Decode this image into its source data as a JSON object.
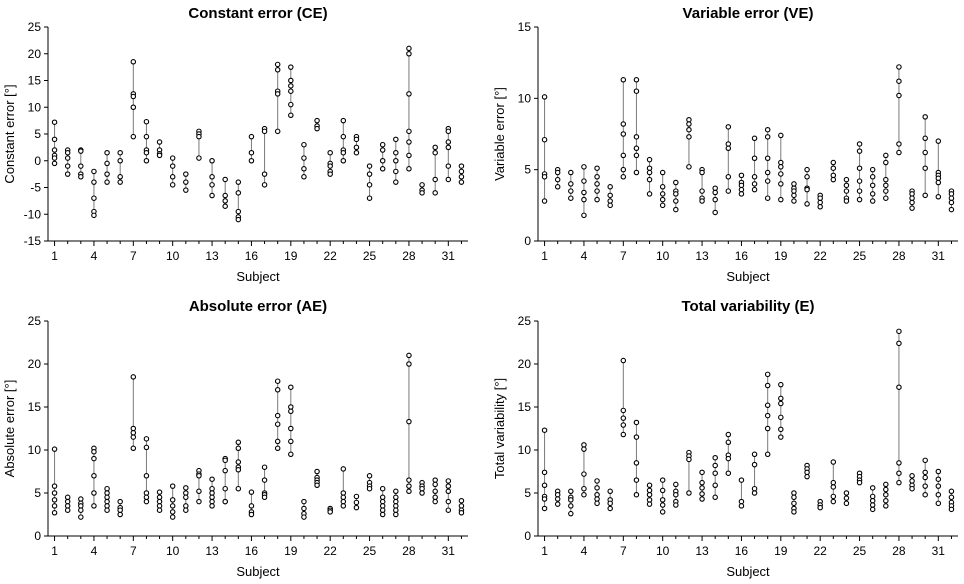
{
  "chart_data": [
    {
      "type": "scatter",
      "title": "Constant error (CE)",
      "xlabel": "Subject",
      "ylabel": "Constant error [°]",
      "ylim": [
        -15,
        25
      ],
      "yticks": [
        -15,
        -10,
        -5,
        0,
        5,
        10,
        15,
        20,
        25
      ],
      "xlim": [
        0.5,
        32.5
      ],
      "xticks": [
        1,
        4,
        7,
        10,
        13,
        16,
        19,
        22,
        25,
        28,
        31
      ],
      "subjects": [
        [
          7.2,
          4,
          2,
          1,
          0.5,
          -0.5
        ],
        [
          2,
          1.5,
          0.5,
          -1,
          -2.5
        ],
        [
          2,
          1.8,
          -1,
          -2.5,
          -3
        ],
        [
          -2,
          -4,
          -7,
          -9.5,
          -10.2
        ],
        [
          1.5,
          -0.5,
          -2.5,
          -4
        ],
        [
          1.5,
          0,
          -3,
          -4
        ],
        [
          18.5,
          12.5,
          12,
          10,
          4.5
        ],
        [
          7.3,
          4.5,
          2,
          1.5,
          0
        ],
        [
          3.5,
          2,
          1.3,
          1
        ],
        [
          0.5,
          -1,
          -3,
          -4.5
        ],
        [
          -2.5,
          -4,
          -5.5
        ],
        [
          5.5,
          5,
          4.5,
          0.5
        ],
        [
          0,
          -3,
          -4.5,
          -6.5
        ],
        [
          -3.5,
          -6.5,
          -7.5,
          -8.5
        ],
        [
          -4,
          -6,
          -9.5,
          -10.5,
          -11
        ],
        [
          4.5,
          1.5,
          0
        ],
        [
          6,
          5.5,
          -2.5,
          -4.5
        ],
        [
          18,
          17,
          13,
          12.5,
          5.5
        ],
        [
          17.5,
          15,
          14,
          13,
          10.5,
          8.5
        ],
        [
          3,
          0.5,
          -1.5,
          -3
        ],
        [
          7.5,
          6.5,
          6
        ],
        [
          1.5,
          -0.5,
          -1,
          -2,
          -2.5
        ],
        [
          7.5,
          4.5,
          2,
          1.5,
          0
        ],
        [
          4.5,
          4,
          2.5,
          1.5
        ],
        [
          -1,
          -2.5,
          -4.5,
          -7
        ],
        [
          3,
          2,
          0,
          -1.5
        ],
        [
          4,
          1.5,
          0,
          -2,
          -4
        ],
        [
          21,
          20,
          12.5,
          5.5,
          3.5,
          1,
          -1.5
        ],
        [
          -4.5,
          -5.5,
          -6
        ],
        [
          2.5,
          1.5,
          -3.5,
          -6
        ],
        [
          6,
          5.5,
          3.5,
          2.5,
          -1,
          -3.5
        ],
        [
          -1,
          -2,
          -3,
          -4
        ]
      ]
    },
    {
      "type": "scatter",
      "title": "Variable error (VE)",
      "xlabel": "Subject",
      "ylabel": "Variable error [°]",
      "ylim": [
        0,
        15
      ],
      "yticks": [
        0,
        5,
        10,
        15
      ],
      "xlim": [
        0.5,
        32.5
      ],
      "xticks": [
        1,
        4,
        7,
        10,
        13,
        16,
        19,
        22,
        25,
        28,
        31
      ],
      "subjects": [
        [
          10.1,
          7.1,
          4.7,
          4.5,
          2.8
        ],
        [
          5,
          4.8,
          4.3,
          3.8
        ],
        [
          4.8,
          4,
          3.5,
          3
        ],
        [
          5.2,
          4.2,
          3.4,
          2.9,
          1.8
        ],
        [
          5.1,
          4.5,
          4,
          3.5,
          2.9
        ],
        [
          3.8,
          3.2,
          2.8,
          2.5
        ],
        [
          11.3,
          8.2,
          7.5,
          6,
          5,
          4.5
        ],
        [
          11.3,
          10.5,
          7.3,
          6.5,
          6,
          4.8
        ],
        [
          5.7,
          5.1,
          4.8,
          4.3,
          3.3
        ],
        [
          4.8,
          3.8,
          3.3,
          2.9,
          2.5
        ],
        [
          4.1,
          3.5,
          3.3,
          2.8,
          2.2
        ],
        [
          8.5,
          8.2,
          7.8,
          7.3,
          5.2
        ],
        [
          5,
          4.8,
          3.5,
          3,
          2.8
        ],
        [
          3.7,
          3.4,
          2.9,
          2
        ],
        [
          8,
          6.8,
          6.5,
          4.5,
          3.5
        ],
        [
          4.6,
          4.1,
          3.9,
          3.6,
          3.3
        ],
        [
          7.2,
          5.8,
          4.5,
          4,
          3.6
        ],
        [
          7.8,
          7.3,
          5.8,
          4.8,
          4.2,
          3
        ],
        [
          7.4,
          5.5,
          5.2,
          4.7,
          4,
          2.9
        ],
        [
          4,
          3.7,
          3.5,
          3.2,
          2.8
        ],
        [
          5,
          4.5,
          3.7,
          3.6,
          2.6
        ],
        [
          3.2,
          3,
          2.7,
          2.4
        ],
        [
          5.5,
          5.1,
          4.6,
          4.3
        ],
        [
          4.3,
          3.9,
          3.5,
          3,
          2.8
        ],
        [
          6.8,
          6.3,
          5.1,
          4.2,
          3.5,
          2.9
        ],
        [
          5,
          4.5,
          3.9,
          3.3,
          2.8
        ],
        [
          6,
          5.5,
          4.3,
          3.9,
          3.5,
          3
        ],
        [
          12.2,
          11.2,
          10.2,
          6.8,
          6.2
        ],
        [
          3.5,
          3.3,
          3,
          2.7,
          2.3
        ],
        [
          8.7,
          7.2,
          6.2,
          5.1,
          3.2
        ],
        [
          7,
          4.8,
          4.6,
          4.4,
          4.1,
          3.1
        ],
        [
          3.5,
          3.3,
          3,
          2.7,
          2.2
        ]
      ]
    },
    {
      "type": "scatter",
      "title": "Absolute error (AE)",
      "xlabel": "Subject",
      "ylabel": "Absolute error [°]",
      "ylim": [
        0,
        25
      ],
      "yticks": [
        0,
        5,
        10,
        15,
        20,
        25
      ],
      "xlim": [
        0.5,
        32.5
      ],
      "xticks": [
        1,
        4,
        7,
        10,
        13,
        16,
        19,
        22,
        25,
        28,
        31
      ],
      "subjects": [
        [
          10.1,
          5.8,
          5,
          4.2,
          3.5,
          2.7
        ],
        [
          4.5,
          4,
          3.5,
          3
        ],
        [
          4.3,
          3.8,
          3.5,
          3,
          2.2
        ],
        [
          10.2,
          9.8,
          9,
          7,
          5,
          3.5
        ],
        [
          5.5,
          5,
          4.5,
          4,
          3.5,
          3
        ],
        [
          4,
          3.3,
          3,
          2.5
        ],
        [
          18.5,
          12.5,
          12,
          11.5,
          10.2
        ],
        [
          11.3,
          10.3,
          7,
          5,
          4.5,
          4
        ],
        [
          5.1,
          4.5,
          4,
          3.5,
          3
        ],
        [
          5.8,
          4.2,
          3.5,
          2.8,
          2.2
        ],
        [
          5.6,
          5,
          4.5,
          3.5,
          3
        ],
        [
          7.6,
          7.2,
          7,
          5.2,
          4
        ],
        [
          6.6,
          5.5,
          5,
          4.5,
          4,
          3.5
        ],
        [
          9,
          8.8,
          7.6,
          5.5,
          4,
          4
        ],
        [
          10.9,
          10.2,
          8.6,
          8,
          7.7,
          5.5
        ],
        [
          5.1,
          3.5,
          2.8,
          2.5
        ],
        [
          8,
          6.5,
          5,
          4.8,
          4.5
        ],
        [
          18,
          17,
          14,
          13,
          11,
          10.2
        ],
        [
          17.3,
          15,
          14.5,
          12.5,
          11,
          9.5
        ],
        [
          4,
          3.2,
          2.6,
          2.2
        ],
        [
          7.5,
          6.8,
          6.5,
          6.2,
          5.9
        ],
        [
          3.2,
          3,
          2.8
        ],
        [
          7.8,
          5,
          4.5,
          4,
          3.5
        ],
        [
          4.6,
          3.9,
          3.3
        ],
        [
          7,
          6.2,
          5.8,
          5.5
        ],
        [
          5.5,
          4.5,
          4,
          3.5,
          3,
          2.5
        ],
        [
          5.2,
          4.5,
          4,
          3.5,
          3,
          2.5
        ],
        [
          21,
          20,
          13.3,
          6.5,
          5.8,
          5.2
        ],
        [
          6.2,
          5.8,
          5.5,
          5
        ],
        [
          6.5,
          6,
          5.2,
          4.5,
          4
        ],
        [
          6.4,
          5.8,
          5.2,
          4,
          3
        ],
        [
          4.1,
          3.5,
          3,
          2.7
        ]
      ]
    },
    {
      "type": "scatter",
      "title": "Total variability (E)",
      "xlabel": "Subject",
      "ylabel": "Total variability [°]",
      "ylim": [
        0,
        25
      ],
      "yticks": [
        0,
        5,
        10,
        15,
        20,
        25
      ],
      "xlim": [
        0.5,
        32.5
      ],
      "xticks": [
        1,
        4,
        7,
        10,
        13,
        16,
        19,
        22,
        25,
        28,
        31
      ],
      "subjects": [
        [
          12.3,
          7.4,
          5.9,
          4.6,
          4.3,
          3.2
        ],
        [
          5.2,
          4.8,
          4.3,
          3.7
        ],
        [
          5.2,
          4.5,
          4.2,
          3.5,
          2.6
        ],
        [
          10.6,
          10.1,
          7.2,
          5.5,
          4.8
        ],
        [
          6.4,
          5.6,
          4.8,
          4.3,
          3.8
        ],
        [
          5.2,
          4.2,
          3.8,
          3.2
        ],
        [
          20.4,
          14.6,
          13.7,
          12.9,
          11.8
        ],
        [
          13.2,
          11.5,
          8.5,
          6.5,
          4.8
        ],
        [
          5.9,
          5.3,
          4.8,
          4.2,
          3.7
        ],
        [
          6.5,
          5.3,
          4.2,
          3.6,
          2.8
        ],
        [
          6,
          5.2,
          4.8,
          4,
          3.6
        ],
        [
          9.7,
          9.3,
          8.9,
          5
        ],
        [
          7.4,
          6.2,
          5.6,
          4.9,
          4.3
        ],
        [
          9.1,
          8.2,
          7.3,
          5.9,
          4.5
        ],
        [
          11.8,
          10.9,
          9.4,
          9,
          7.3
        ],
        [
          6.5,
          4,
          3.5
        ],
        [
          9.5,
          8.3,
          5.5,
          5
        ],
        [
          18.8,
          17.5,
          15.2,
          14,
          12.5,
          9.5
        ],
        [
          17.6,
          16,
          15.4,
          13.8,
          12.4,
          11.5
        ],
        [
          5,
          4.5,
          3.8,
          3.2,
          2.8
        ],
        [
          8.2,
          7.8,
          7.4,
          6.9
        ],
        [
          4,
          3.6,
          3.3
        ],
        [
          8.6,
          6.2,
          5.7,
          4.6,
          4
        ],
        [
          5,
          4.4,
          3.8
        ],
        [
          7.3,
          6.9,
          6.5,
          6.2
        ],
        [
          5.6,
          4.6,
          4.1,
          3.6,
          3.1
        ],
        [
          6,
          5.4,
          4.8,
          4.1,
          3.5
        ],
        [
          23.8,
          22.4,
          17.3,
          8.5,
          7.3,
          6.2
        ],
        [
          7,
          6.4,
          5.9,
          5.5
        ],
        [
          8.8,
          7.4,
          6.8,
          5.8,
          4.8
        ],
        [
          7.5,
          6.6,
          5.8,
          4.8,
          3.8
        ],
        [
          5.2,
          4.5,
          3.9,
          3.5,
          3.1
        ]
      ]
    }
  ]
}
